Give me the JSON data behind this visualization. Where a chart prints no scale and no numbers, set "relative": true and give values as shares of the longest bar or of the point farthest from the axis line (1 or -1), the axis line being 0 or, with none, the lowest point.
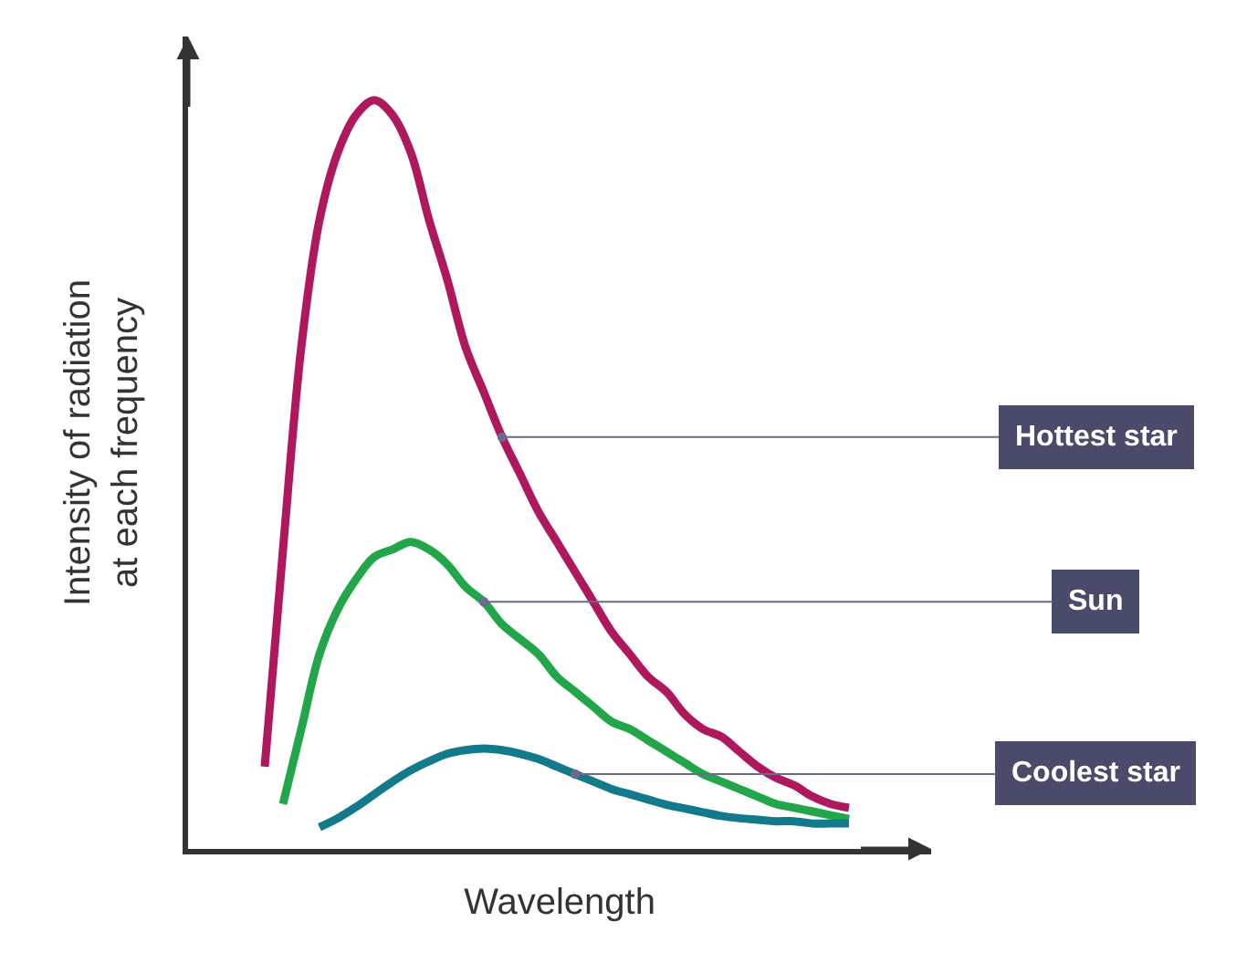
{
  "chart_data": {
    "type": "line",
    "relative": true,
    "xlabel": "Wavelength",
    "ylabel": "Intensity of radiation\nat each frequency",
    "categories": [
      null,
      null,
      null,
      null,
      null,
      null,
      null,
      null,
      null,
      null,
      null,
      null,
      null,
      null,
      null,
      null,
      null,
      null,
      null,
      null,
      null,
      null,
      null,
      null,
      null,
      null,
      null,
      null,
      null,
      null,
      null,
      null,
      null
    ],
    "series": [
      {
        "name": "Hottest star",
        "color": "#b0185e",
        "values": [
          0.11,
          0.4,
          0.67,
          0.84,
          0.93,
          0.98,
          1.0,
          0.98,
          0.93,
          0.84,
          0.76,
          0.67,
          0.61,
          0.55,
          0.5,
          0.45,
          0.41,
          0.37,
          0.33,
          0.29,
          0.26,
          0.23,
          0.21,
          0.18,
          0.16,
          0.15,
          0.13,
          0.11,
          0.095,
          0.085,
          0.07,
          0.06,
          0.055
        ]
      },
      {
        "name": "Sun",
        "color": "#22a64a",
        "values": [
          null,
          0.06,
          0.16,
          0.26,
          0.32,
          0.36,
          0.39,
          0.4,
          0.41,
          0.4,
          0.38,
          0.35,
          0.33,
          0.3,
          0.28,
          0.26,
          0.23,
          0.21,
          0.19,
          0.17,
          0.16,
          0.145,
          0.13,
          0.115,
          0.1,
          0.09,
          0.08,
          0.07,
          0.06,
          0.055,
          0.05,
          0.045,
          0.04
        ]
      },
      {
        "name": "Coolest star",
        "color": "#127a8a",
        "values": [
          null,
          null,
          null,
          0.029,
          0.041,
          0.056,
          0.073,
          0.09,
          0.105,
          0.117,
          0.127,
          0.132,
          0.134,
          0.132,
          0.127,
          0.12,
          0.11,
          0.1,
          0.09,
          0.08,
          0.073,
          0.066,
          0.059,
          0.054,
          0.049,
          0.044,
          0.041,
          0.039,
          0.037,
          0.037,
          0.034,
          0.034,
          0.034
        ]
      }
    ],
    "legend": false,
    "marker": "none",
    "line_style": "solid"
  }
}
